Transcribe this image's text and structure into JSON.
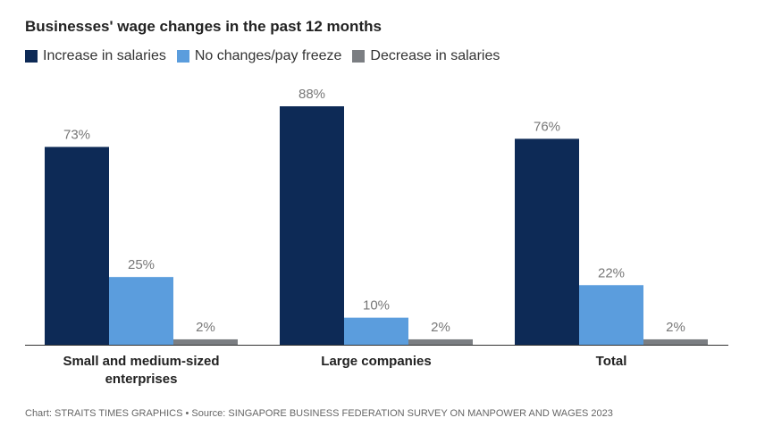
{
  "chart_data": {
    "type": "bar",
    "title": "Businesses' wage changes in the past 12 months",
    "categories": [
      [
        "Small and medium-sized",
        "enterprises"
      ],
      [
        "Large companies"
      ],
      [
        "Total"
      ]
    ],
    "series": [
      {
        "name": "Increase in salaries",
        "color": "#0d2a56",
        "values": [
          73,
          88,
          76
        ],
        "labels": [
          "73%",
          "88%",
          "76%"
        ]
      },
      {
        "name": "No changes/pay freeze",
        "color": "#5b9ddd",
        "values": [
          25,
          10,
          22
        ],
        "labels": [
          "25%",
          "10%",
          "22%"
        ]
      },
      {
        "name": "Decrease in salaries",
        "color": "#7b7e82",
        "values": [
          2,
          2,
          2
        ],
        "labels": [
          "2%",
          "2%",
          "2%"
        ]
      }
    ],
    "ylim": [
      0,
      88
    ],
    "legend_position": "top-left",
    "grid": false,
    "axis_color": "#333333"
  },
  "footer": {
    "source": "Chart: STRAITS TIMES GRAPHICS • Source: SINGAPORE BUSINESS FEDERATION SURVEY ON MANPOWER AND WAGES 2023"
  }
}
